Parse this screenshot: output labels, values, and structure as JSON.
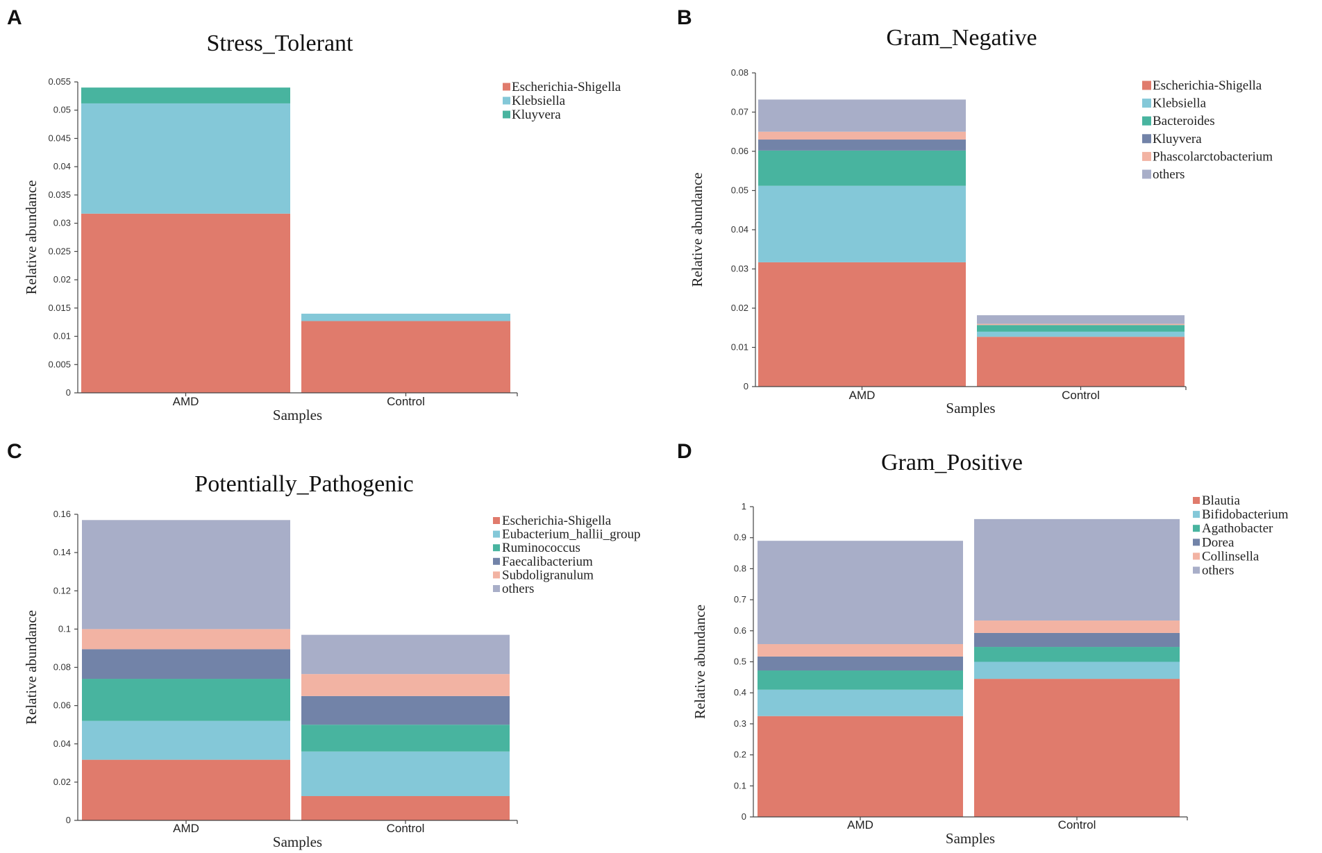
{
  "colors": {
    "salmon": "#E07B6C",
    "lightblue": "#84C8D8",
    "teal": "#48B49F",
    "slate": "#7283A8",
    "peach": "#F2B3A3",
    "lavender": "#A8AEC8"
  },
  "chart_data": [
    {
      "panel": "A",
      "type": "bar",
      "stacked": true,
      "title": "Stress_Tolerant",
      "xlabel": "Samples",
      "ylabel": "Relative abundance",
      "ylim": [
        0,
        0.055
      ],
      "yticks": [
        "0",
        "0.005",
        "0.01",
        "0.015",
        "0.02",
        "0.025",
        "0.03",
        "0.035",
        "0.04",
        "0.045",
        "0.05",
        "0.055"
      ],
      "categories": [
        "AMD",
        "Control"
      ],
      "series": [
        {
          "name": "Escherichia-Shigella",
          "color": "#E07B6C",
          "values": [
            0.0317,
            0.0127
          ]
        },
        {
          "name": "Klebsiella",
          "color": "#84C8D8",
          "values": [
            0.0195,
            0.0013
          ]
        },
        {
          "name": "Kluyvera",
          "color": "#48B49F",
          "values": [
            0.0028,
            0.0
          ]
        }
      ]
    },
    {
      "panel": "B",
      "type": "bar",
      "stacked": true,
      "title": "Gram_Negative",
      "xlabel": "Samples",
      "ylabel": "Relative abundance",
      "ylim": [
        0,
        0.08
      ],
      "yticks": [
        "0",
        "0.01",
        "0.02",
        "0.03",
        "0.04",
        "0.05",
        "0.06",
        "0.07",
        "0.08"
      ],
      "categories": [
        "AMD",
        "Control"
      ],
      "series": [
        {
          "name": "Escherichia-Shigella",
          "color": "#E07B6C",
          "values": [
            0.0317,
            0.0127
          ]
        },
        {
          "name": "Klebsiella",
          "color": "#84C8D8",
          "values": [
            0.0195,
            0.0013
          ]
        },
        {
          "name": "Bacteroides",
          "color": "#48B49F",
          "values": [
            0.009,
            0.0017
          ]
        },
        {
          "name": "Kluyvera",
          "color": "#7283A8",
          "values": [
            0.0028,
            0.0
          ]
        },
        {
          "name": "Phascolarctobacterium",
          "color": "#F2B3A3",
          "values": [
            0.002,
            0.0003
          ]
        },
        {
          "name": "others",
          "color": "#A8AEC8",
          "values": [
            0.0082,
            0.0022
          ]
        }
      ]
    },
    {
      "panel": "C",
      "type": "bar",
      "stacked": true,
      "title": "Potentially_Pathogenic",
      "xlabel": "Samples",
      "ylabel": "Relative abundance",
      "ylim": [
        0,
        0.16
      ],
      "yticks": [
        "0",
        "0.02",
        "0.04",
        "0.06",
        "0.08",
        "0.1",
        "0.12",
        "0.14",
        "0.16"
      ],
      "categories": [
        "AMD",
        "Control"
      ],
      "series": [
        {
          "name": "Escherichia-Shigella",
          "color": "#E07B6C",
          "values": [
            0.0317,
            0.0127
          ]
        },
        {
          "name": "Eubacterium_hallii_group",
          "color": "#84C8D8",
          "values": [
            0.0203,
            0.0233
          ]
        },
        {
          "name": "Ruminococcus",
          "color": "#48B49F",
          "values": [
            0.022,
            0.014
          ]
        },
        {
          "name": "Faecalibacterium",
          "color": "#7283A8",
          "values": [
            0.0155,
            0.015
          ]
        },
        {
          "name": "Subdoligranulum",
          "color": "#F2B3A3",
          "values": [
            0.0105,
            0.0115
          ]
        },
        {
          "name": "others",
          "color": "#A8AEC8",
          "values": [
            0.057,
            0.0205
          ]
        }
      ]
    },
    {
      "panel": "D",
      "type": "bar",
      "stacked": true,
      "title": "Gram_Positive",
      "xlabel": "Samples",
      "ylabel": "Relative abundance",
      "ylim": [
        0,
        1
      ],
      "yticks": [
        "0",
        "0.1",
        "0.2",
        "0.3",
        "0.4",
        "0.5",
        "0.6",
        "0.7",
        "0.8",
        "0.9",
        "1"
      ],
      "categories": [
        "AMD",
        "Control"
      ],
      "series": [
        {
          "name": "Blautia",
          "color": "#E07B6C",
          "values": [
            0.325,
            0.445
          ]
        },
        {
          "name": "Bifidobacterium",
          "color": "#84C8D8",
          "values": [
            0.085,
            0.055
          ]
        },
        {
          "name": "Agathobacter",
          "color": "#48B49F",
          "values": [
            0.062,
            0.048
          ]
        },
        {
          "name": "Dorea",
          "color": "#7283A8",
          "values": [
            0.045,
            0.045
          ]
        },
        {
          "name": "Collinsella",
          "color": "#F2B3A3",
          "values": [
            0.04,
            0.04
          ]
        },
        {
          "name": "others",
          "color": "#A8AEC8",
          "values": [
            0.333,
            0.327
          ]
        }
      ]
    }
  ]
}
